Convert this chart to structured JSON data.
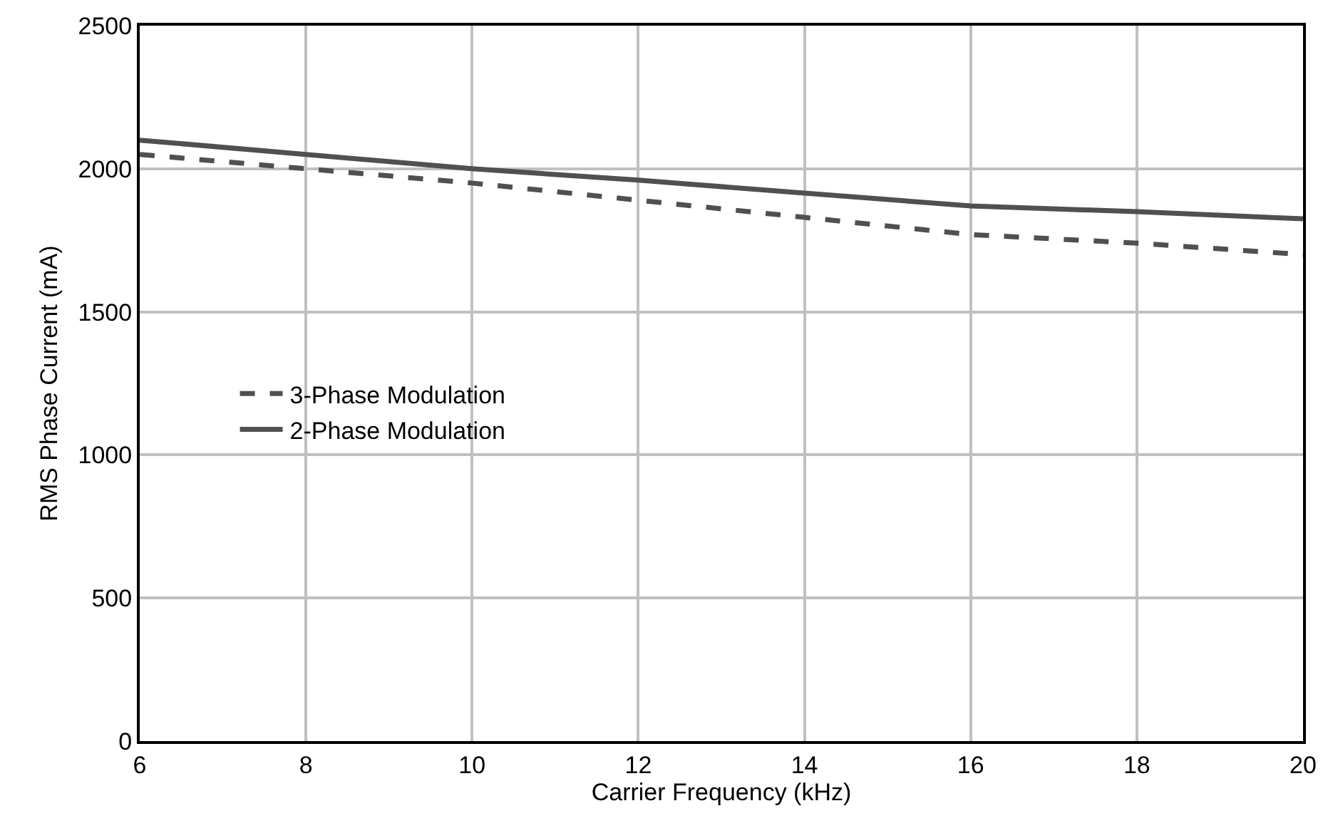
{
  "chart_data": {
    "type": "line",
    "xlabel": "Carrier Frequency (kHz)",
    "ylabel": "RMS Phase Current (mA)",
    "x": [
      6,
      8,
      10,
      12,
      14,
      16,
      18,
      20
    ],
    "series": [
      {
        "name": "3-Phase Modulation",
        "color": "#505050",
        "line_style": "dashed",
        "values": [
          2050,
          2000,
          1950,
          1890,
          1830,
          1770,
          1740,
          1700
        ]
      },
      {
        "name": "2-Phase Modulation",
        "color": "#505050",
        "line_style": "solid",
        "values": [
          2100,
          2050,
          2000,
          1960,
          1915,
          1870,
          1850,
          1825
        ]
      }
    ],
    "xlim": [
      6,
      20
    ],
    "xticks": [
      6,
      8,
      10,
      12,
      14,
      16,
      18,
      20
    ],
    "ylim": [
      0,
      2500
    ],
    "yticks": [
      0,
      500,
      1000,
      1500,
      2000,
      2500
    ],
    "grid": true,
    "legend": "left",
    "marker": "none"
  }
}
